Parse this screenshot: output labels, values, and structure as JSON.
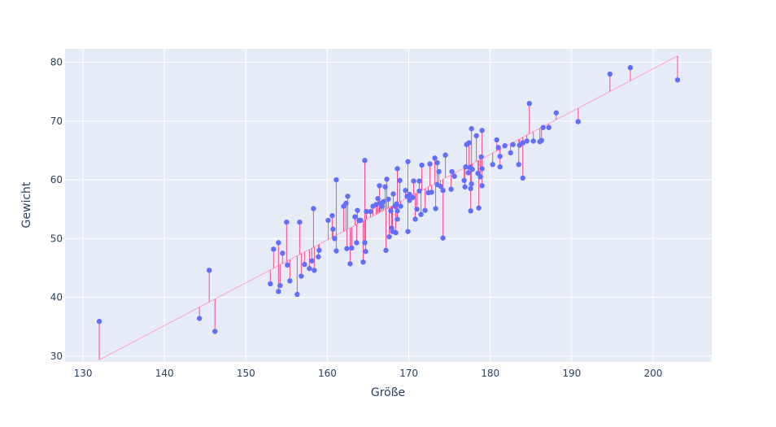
{
  "chart_data": {
    "type": "scatter",
    "xlabel": "Größe",
    "ylabel": "Gewicht",
    "xlim": [
      127.8,
      207.2
    ],
    "ylim": [
      29,
      82.3
    ],
    "xticks": [
      130,
      140,
      150,
      160,
      170,
      180,
      190,
      200
    ],
    "yticks": [
      30,
      40,
      50,
      60,
      70,
      80
    ],
    "grid": true,
    "regression": {
      "slope": 0.7285,
      "intercept": -66.8
    },
    "points": [
      [
        132,
        35.9
      ],
      [
        144.3,
        36.4
      ],
      [
        145.5,
        44.6
      ],
      [
        146.2,
        34.2
      ],
      [
        153.0,
        42.3
      ],
      [
        153.4,
        48.2
      ],
      [
        154.0,
        49.3
      ],
      [
        154.0,
        41.0
      ],
      [
        154.2,
        42.0
      ],
      [
        154.5,
        47.5
      ],
      [
        155.0,
        52.8
      ],
      [
        155.1,
        45.5
      ],
      [
        155.4,
        42.8
      ],
      [
        156.3,
        40.5
      ],
      [
        156.6,
        52.8
      ],
      [
        156.8,
        43.6
      ],
      [
        157.2,
        45.6
      ],
      [
        157.8,
        44.9
      ],
      [
        158.1,
        46.2
      ],
      [
        158.3,
        55.1
      ],
      [
        158.4,
        44.6
      ],
      [
        158.9,
        46.9
      ],
      [
        159.0,
        48.0
      ],
      [
        160.1,
        53.1
      ],
      [
        160.6,
        53.9
      ],
      [
        160.7,
        51.6
      ],
      [
        160.9,
        50.0
      ],
      [
        161.1,
        47.9
      ],
      [
        161.1,
        60.0
      ],
      [
        162.0,
        55.5
      ],
      [
        162.3,
        56.0
      ],
      [
        162.5,
        57.2
      ],
      [
        162.4,
        48.3
      ],
      [
        162.8,
        45.7
      ],
      [
        163.0,
        48.4
      ],
      [
        163.4,
        53.7
      ],
      [
        163.6,
        49.3
      ],
      [
        163.7,
        54.8
      ],
      [
        164.1,
        53.1
      ],
      [
        163.9,
        53.1
      ],
      [
        164.4,
        46.0
      ],
      [
        164.6,
        49.3
      ],
      [
        164.7,
        47.8
      ],
      [
        164.6,
        63.3
      ],
      [
        164.8,
        54.6
      ],
      [
        165.3,
        54.6
      ],
      [
        165.6,
        55.5
      ],
      [
        166.0,
        55.8
      ],
      [
        166.2,
        56.8
      ],
      [
        166.4,
        59.0
      ],
      [
        166.5,
        56.0
      ],
      [
        166.9,
        56.3
      ],
      [
        166.7,
        55.5
      ],
      [
        167.1,
        58.8
      ],
      [
        167.3,
        60.1
      ],
      [
        167.5,
        56.7
      ],
      [
        167.2,
        48.0
      ],
      [
        167.6,
        50.3
      ],
      [
        167.8,
        54.7
      ],
      [
        167.9,
        51.8
      ],
      [
        168.1,
        57.6
      ],
      [
        168.0,
        51.2
      ],
      [
        168.4,
        51.0
      ],
      [
        168.5,
        55.9
      ],
      [
        168.6,
        53.3
      ],
      [
        168.6,
        54.7
      ],
      [
        168.3,
        55.5
      ],
      [
        168.6,
        61.9
      ],
      [
        168.9,
        59.9
      ],
      [
        169.0,
        55.5
      ],
      [
        169.6,
        58.2
      ],
      [
        169.9,
        63.1
      ],
      [
        169.8,
        57.2
      ],
      [
        169.9,
        51.2
      ],
      [
        170.1,
        56.5
      ],
      [
        170.1,
        57.5
      ],
      [
        170.5,
        57.0
      ],
      [
        170.8,
        53.3
      ],
      [
        170.6,
        59.8
      ],
      [
        171.0,
        55.0
      ],
      [
        171.3,
        59.8
      ],
      [
        171.3,
        58.1
      ],
      [
        171.5,
        54.1
      ],
      [
        171.6,
        62.5
      ],
      [
        172.0,
        54.8
      ],
      [
        172.4,
        57.8
      ],
      [
        172.6,
        62.7
      ],
      [
        172.8,
        57.9
      ],
      [
        173.2,
        63.7
      ],
      [
        173.3,
        55.1
      ],
      [
        173.5,
        59.2
      ],
      [
        173.5,
        62.9
      ],
      [
        173.7,
        61.4
      ],
      [
        173.9,
        58.9
      ],
      [
        174.2,
        58.2
      ],
      [
        174.2,
        50.1
      ],
      [
        174.5,
        64.2
      ],
      [
        175.2,
        58.4
      ],
      [
        175.3,
        61.4
      ],
      [
        175.6,
        60.6
      ],
      [
        176.8,
        59.9
      ],
      [
        176.9,
        58.8
      ],
      [
        177.0,
        62.2
      ],
      [
        177.1,
        66.0
      ],
      [
        177.3,
        61.2
      ],
      [
        177.4,
        66.3
      ],
      [
        177.5,
        62.1
      ],
      [
        177.6,
        54.7
      ],
      [
        177.6,
        58.5
      ],
      [
        177.7,
        59.3
      ],
      [
        177.7,
        68.7
      ],
      [
        177.8,
        61.8
      ],
      [
        178.3,
        67.5
      ],
      [
        178.5,
        61.1
      ],
      [
        178.6,
        55.2
      ],
      [
        178.8,
        60.5
      ],
      [
        178.9,
        63.9
      ],
      [
        179.0,
        68.4
      ],
      [
        179.0,
        59.0
      ],
      [
        179.0,
        61.9
      ],
      [
        180.3,
        62.6
      ],
      [
        180.8,
        66.8
      ],
      [
        181.0,
        65.5
      ],
      [
        181.2,
        64.0
      ],
      [
        181.2,
        62.2
      ],
      [
        181.8,
        65.8
      ],
      [
        182.5,
        64.6
      ],
      [
        182.8,
        66.0
      ],
      [
        183.5,
        62.6
      ],
      [
        183.6,
        65.9
      ],
      [
        184.0,
        66.3
      ],
      [
        184.0,
        60.3
      ],
      [
        184.5,
        66.6
      ],
      [
        184.8,
        73.0
      ],
      [
        185.3,
        66.6
      ],
      [
        186.1,
        66.5
      ],
      [
        186.3,
        66.7
      ],
      [
        186.5,
        68.9
      ],
      [
        187.2,
        68.9
      ],
      [
        188.1,
        71.4
      ],
      [
        190.8,
        69.9
      ],
      [
        194.7,
        78.0
      ],
      [
        197.2,
        79.1
      ],
      [
        203.0,
        77.0
      ]
    ]
  }
}
